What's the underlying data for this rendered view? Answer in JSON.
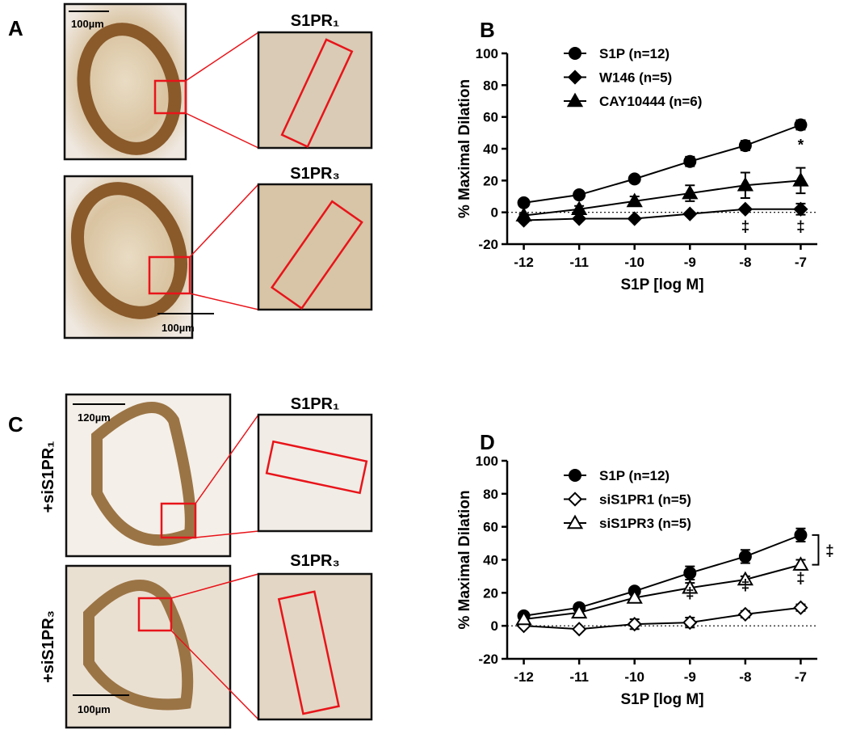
{
  "panels": {
    "a": "A",
    "b": "B",
    "c": "C",
    "d": "D"
  },
  "images": {
    "a_top": {
      "scale": "100µm",
      "zoom_label": "S1PR₁"
    },
    "a_bottom": {
      "scale": "100µm",
      "zoom_label": "S1PR₃"
    },
    "c_top": {
      "scale": "120µm",
      "zoom_label": "S1PR₁",
      "side_label": "+siS1PR₁"
    },
    "c_bottom": {
      "scale": "100µm",
      "zoom_label": "S1PR₃",
      "side_label": "+siS1PR₃"
    }
  },
  "chart_data": [
    {
      "type": "line",
      "ylabel": "% Maximal Dilation",
      "xlabel": "S1P [log M]",
      "x": [
        -12,
        -11,
        -10,
        -9,
        -8,
        -7
      ],
      "xlim": [
        -12.3,
        -6.7
      ],
      "xticks": [
        -12,
        -11,
        -10,
        -9,
        -8,
        -7
      ],
      "ylim": [
        -20,
        100
      ],
      "yticks": [
        -20,
        0,
        20,
        40,
        60,
        80,
        100
      ],
      "hline": 0,
      "series": [
        {
          "name": "S1P (n=12)",
          "color": "#000000",
          "marker": "circle",
          "filled": true,
          "values": [
            6,
            11,
            21,
            32,
            42,
            55
          ],
          "errors": [
            2,
            1,
            1.5,
            3,
            3,
            3
          ]
        },
        {
          "name": "W146 (n=5)",
          "color": "#000000",
          "marker": "diamond",
          "filled": true,
          "values": [
            -5,
            -4,
            -4,
            -1,
            2,
            2
          ],
          "errors": [
            1,
            1,
            1,
            1,
            1,
            3.5
          ]
        },
        {
          "name": "CAY10444 (n=6)",
          "color": "#000000",
          "marker": "triangle",
          "filled": true,
          "values": [
            -2,
            2,
            7,
            12,
            17,
            20
          ],
          "errors": [
            1,
            2,
            3,
            5,
            8,
            8
          ]
        }
      ],
      "annotations": [
        "*",
        "‡",
        "‡"
      ]
    },
    {
      "type": "line",
      "ylabel": "% Maximal Dilation",
      "xlabel": "S1P [log M]",
      "x": [
        -12,
        -11,
        -10,
        -9,
        -8,
        -7
      ],
      "xlim": [
        -12.3,
        -6.7
      ],
      "xticks": [
        -12,
        -11,
        -10,
        -9,
        -8,
        -7
      ],
      "ylim": [
        -20,
        100
      ],
      "yticks": [
        -20,
        0,
        20,
        40,
        60,
        80,
        100
      ],
      "hline": 0,
      "series": [
        {
          "name": "S1P (n=12)",
          "color": "#000000",
          "marker": "circle",
          "filled": true,
          "values": [
            6,
            11,
            21,
            32,
            42,
            55
          ],
          "errors": [
            2,
            2,
            2,
            4,
            4,
            4
          ]
        },
        {
          "name": "siS1PR1 (n=5)",
          "color": "#000000",
          "marker": "diamond",
          "filled": false,
          "values": [
            0,
            -2,
            1,
            2,
            7,
            11
          ],
          "errors": [
            1,
            1,
            3,
            3,
            2,
            2
          ]
        },
        {
          "name": "siS1PR3 (n=5)",
          "color": "#000000",
          "marker": "triangle",
          "filled": false,
          "values": [
            4,
            8,
            17,
            23,
            28,
            37
          ],
          "errors": [
            1,
            1,
            2,
            3,
            2,
            3
          ]
        }
      ],
      "annotations": [
        "‡",
        "‡",
        "‡",
        "‡"
      ]
    }
  ]
}
